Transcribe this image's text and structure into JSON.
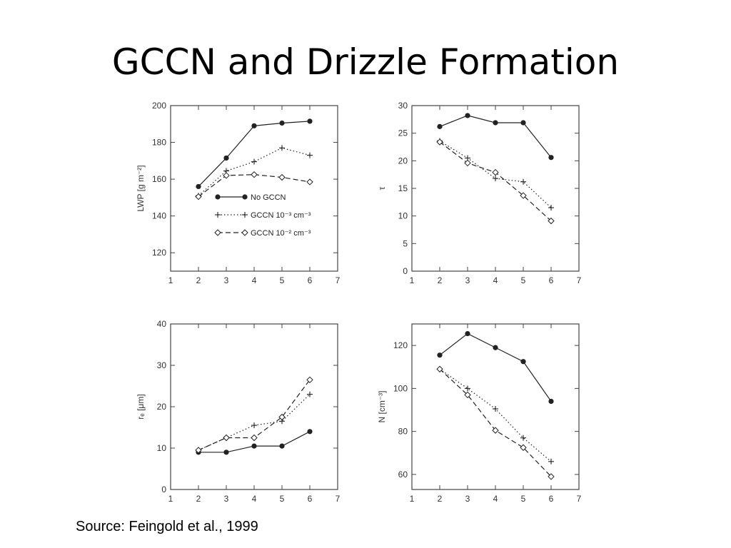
{
  "slide": {
    "title": "GCCN and Drizzle Formation",
    "source": "Source:  Feingold et al., 1999"
  },
  "colors": {
    "ink": "#222222",
    "frame": "#444444"
  },
  "chart_data": [
    {
      "type": "line",
      "panel": "top-left",
      "ylabel": "LWP [g m⁻²]",
      "xlim": [
        1,
        7
      ],
      "ylim": [
        110,
        200
      ],
      "xticks": [
        1,
        2,
        3,
        4,
        5,
        6,
        7
      ],
      "yticks": [
        120,
        140,
        160,
        180,
        200
      ],
      "x": [
        2,
        3,
        4,
        5,
        6
      ],
      "legend": "inside-bottom",
      "series": [
        {
          "name": "No GCCN",
          "marker": "dot",
          "dash": "solid",
          "values": [
            156,
            171.5,
            189,
            190.5,
            191.5
          ]
        },
        {
          "name": "GCCN 10⁻³ cm⁻³",
          "marker": "plus",
          "dash": "dotted",
          "values": [
            151,
            164.5,
            169.5,
            177,
            173
          ]
        },
        {
          "name": "GCCN 10⁻² cm⁻³",
          "marker": "diamond",
          "dash": "dashed",
          "values": [
            150.5,
            162,
            162.5,
            161,
            158.5
          ]
        }
      ]
    },
    {
      "type": "line",
      "panel": "top-right",
      "ylabel": "τ",
      "xlim": [
        1,
        7
      ],
      "ylim": [
        0,
        30
      ],
      "xticks": [
        1,
        2,
        3,
        4,
        5,
        6,
        7
      ],
      "yticks": [
        0,
        5,
        10,
        15,
        20,
        25,
        30
      ],
      "x": [
        2,
        3,
        4,
        5,
        6
      ],
      "series": [
        {
          "name": "No GCCN",
          "marker": "dot",
          "dash": "solid",
          "values": [
            26.2,
            28.2,
            26.9,
            26.9,
            20.6
          ]
        },
        {
          "name": "GCCN 10⁻³ cm⁻³",
          "marker": "plus",
          "dash": "dotted",
          "values": [
            23.6,
            20.5,
            16.8,
            16.2,
            11.5
          ]
        },
        {
          "name": "GCCN 10⁻² cm⁻³",
          "marker": "diamond",
          "dash": "dashed",
          "values": [
            23.4,
            19.6,
            17.9,
            13.7,
            9.1
          ]
        }
      ]
    },
    {
      "type": "line",
      "panel": "bottom-left",
      "ylabel": "rₑ [μm]",
      "xlim": [
        1,
        7
      ],
      "ylim": [
        0,
        40
      ],
      "xticks": [
        1,
        2,
        3,
        4,
        5,
        6,
        7
      ],
      "yticks": [
        0,
        10,
        20,
        30,
        40
      ],
      "x": [
        2,
        3,
        4,
        5,
        6
      ],
      "series": [
        {
          "name": "No GCCN",
          "marker": "dot",
          "dash": "solid",
          "values": [
            9,
            9,
            10.5,
            10.5,
            14
          ]
        },
        {
          "name": "GCCN 10⁻³ cm⁻³",
          "marker": "plus",
          "dash": "dotted",
          "values": [
            9.5,
            12.5,
            15.5,
            16.5,
            23
          ]
        },
        {
          "name": "GCCN 10⁻² cm⁻³",
          "marker": "diamond",
          "dash": "dashed",
          "values": [
            9.5,
            12.5,
            12.5,
            17.5,
            26.5
          ]
        }
      ]
    },
    {
      "type": "line",
      "panel": "bottom-right",
      "ylabel": "N [cm⁻³]",
      "xlim": [
        1,
        7
      ],
      "ylim": [
        53,
        130
      ],
      "xticks": [
        1,
        2,
        3,
        4,
        5,
        6,
        7
      ],
      "yticks": [
        60,
        80,
        100,
        120
      ],
      "x": [
        2,
        3,
        4,
        5,
        6
      ],
      "series": [
        {
          "name": "No GCCN",
          "marker": "dot",
          "dash": "solid",
          "values": [
            115.5,
            125.5,
            119,
            112.5,
            94
          ]
        },
        {
          "name": "GCCN 10⁻³ cm⁻³",
          "marker": "plus",
          "dash": "dotted",
          "values": [
            109,
            100,
            90.5,
            77,
            66
          ]
        },
        {
          "name": "GCCN 10⁻² cm⁻³",
          "marker": "diamond",
          "dash": "dashed",
          "values": [
            109,
            97,
            80.5,
            72.5,
            59
          ]
        }
      ]
    }
  ]
}
